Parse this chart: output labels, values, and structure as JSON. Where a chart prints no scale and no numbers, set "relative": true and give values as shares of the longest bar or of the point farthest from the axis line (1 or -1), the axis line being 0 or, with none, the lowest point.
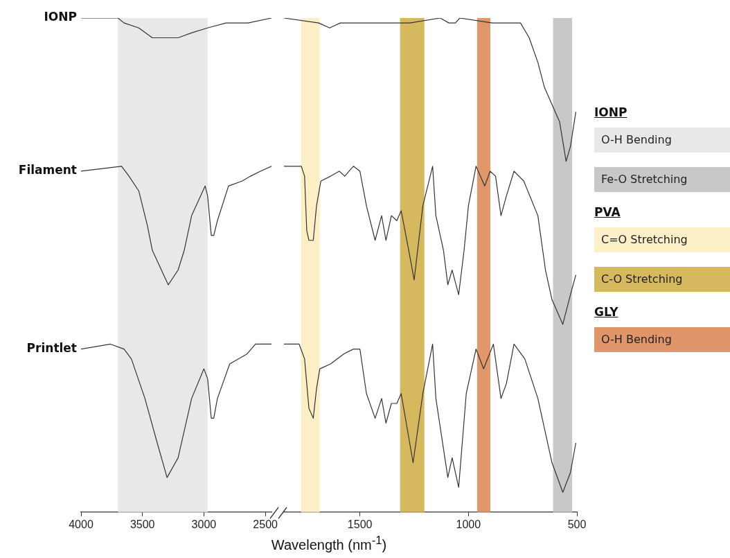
{
  "chart_data": [
    {
      "type": "line",
      "relative": true,
      "xlim": [
        4000,
        2450
      ],
      "xticks": [
        4000,
        3500,
        3000,
        2500
      ],
      "bands": [
        {
          "axis": "x",
          "from": 3700,
          "to": 2970,
          "color": "#e8e8e8"
        }
      ],
      "series": [
        {
          "name": "IONP",
          "color": "#333333",
          "x": [
            4000,
            3700,
            3650,
            3530,
            3420,
            3330,
            3210,
            3100,
            2970,
            2820,
            2640,
            2450
          ],
          "values": [
            1.0,
            1.0,
            0.99,
            0.98,
            0.96,
            0.96,
            0.96,
            0.97,
            0.98,
            0.99,
            0.99,
            1.0
          ]
        },
        {
          "name": "Filament",
          "color": "#333333",
          "x": [
            4000,
            3670,
            3610,
            3530,
            3460,
            3420,
            3290,
            3210,
            3160,
            3100,
            2990,
            2970,
            2940,
            2920,
            2890,
            2800,
            2690,
            2620,
            2540,
            2450
          ],
          "values": [
            0.69,
            0.7,
            0.68,
            0.65,
            0.58,
            0.53,
            0.46,
            0.49,
            0.53,
            0.6,
            0.66,
            0.64,
            0.56,
            0.56,
            0.59,
            0.66,
            0.67,
            0.68,
            0.69,
            0.7
          ]
        },
        {
          "name": "Printlet",
          "color": "#333333",
          "x": [
            4000,
            3760,
            3650,
            3590,
            3480,
            3380,
            3300,
            3210,
            3100,
            3000,
            2970,
            2940,
            2920,
            2890,
            2790,
            2650,
            2580,
            2450
          ],
          "values": [
            0.33,
            0.34,
            0.33,
            0.31,
            0.23,
            0.14,
            0.07,
            0.11,
            0.23,
            0.29,
            0.27,
            0.19,
            0.19,
            0.23,
            0.3,
            0.32,
            0.34,
            0.34
          ]
        }
      ]
    },
    {
      "type": "line",
      "relative": true,
      "xlabel": "Wavelength (nm$^{-1}$)",
      "xlim": [
        1850,
        500
      ],
      "xticks": [
        1500,
        1000,
        500
      ],
      "bands": [
        {
          "axis": "x",
          "from": 1772,
          "to": 1685,
          "color": "#fcefc5"
        },
        {
          "axis": "x",
          "from": 1315,
          "to": 1203,
          "color": "#d6b85e"
        },
        {
          "axis": "x",
          "from": 960,
          "to": 899,
          "color": "#e0976a"
        },
        {
          "axis": "x",
          "from": 610,
          "to": 522,
          "color": "#c8c8c8"
        }
      ],
      "series": [
        {
          "color": "#333333",
          "x": [
            1850,
            1690,
            1640,
            1590,
            1430,
            1270,
            1130,
            1090,
            1060,
            1040,
            890,
            780,
            760,
            720,
            680,
            650,
            620,
            580,
            550,
            530,
            505
          ],
          "values": [
            1.0,
            0.99,
            0.98,
            0.99,
            0.99,
            0.99,
            1.0,
            0.99,
            0.99,
            1.0,
            0.99,
            0.99,
            0.99,
            0.96,
            0.91,
            0.86,
            0.83,
            0.79,
            0.71,
            0.74,
            0.81
          ]
        },
        {
          "color": "#333333",
          "x": [
            1850,
            1770,
            1755,
            1745,
            1735,
            1715,
            1700,
            1680,
            1635,
            1595,
            1570,
            1530,
            1500,
            1470,
            1430,
            1400,
            1380,
            1355,
            1330,
            1310,
            1275,
            1250,
            1210,
            1165,
            1150,
            1115,
            1095,
            1075,
            1045,
            1020,
            1000,
            965,
            925,
            900,
            875,
            850,
            825,
            790,
            745,
            680,
            645,
            615,
            565,
            530,
            505
          ],
          "values": [
            0.7,
            0.7,
            0.68,
            0.57,
            0.55,
            0.55,
            0.62,
            0.67,
            0.68,
            0.69,
            0.68,
            0.7,
            0.69,
            0.62,
            0.55,
            0.6,
            0.55,
            0.6,
            0.59,
            0.61,
            0.53,
            0.47,
            0.62,
            0.7,
            0.6,
            0.53,
            0.46,
            0.49,
            0.44,
            0.53,
            0.62,
            0.7,
            0.66,
            0.69,
            0.68,
            0.6,
            0.64,
            0.69,
            0.67,
            0.6,
            0.49,
            0.43,
            0.38,
            0.44,
            0.48
          ]
        },
        {
          "color": "#333333",
          "x": [
            1850,
            1780,
            1755,
            1735,
            1715,
            1700,
            1685,
            1635,
            1575,
            1530,
            1500,
            1470,
            1430,
            1400,
            1380,
            1355,
            1330,
            1310,
            1255,
            1210,
            1165,
            1150,
            1095,
            1075,
            1045,
            1010,
            965,
            930,
            885,
            850,
            825,
            790,
            740,
            680,
            615,
            565,
            530,
            505
          ],
          "values": [
            0.34,
            0.34,
            0.31,
            0.21,
            0.19,
            0.25,
            0.29,
            0.3,
            0.32,
            0.33,
            0.33,
            0.24,
            0.19,
            0.23,
            0.18,
            0.22,
            0.22,
            0.24,
            0.1,
            0.24,
            0.34,
            0.23,
            0.07,
            0.11,
            0.05,
            0.24,
            0.33,
            0.29,
            0.34,
            0.23,
            0.26,
            0.34,
            0.31,
            0.23,
            0.1,
            0.04,
            0.08,
            0.14
          ]
        }
      ]
    },
    {
      "type": "other",
      "title": "IONP",
      "categories": [
        "O-H Bending",
        "Fe-O Stretching"
      ],
      "colors": [
        "#e8e8e8",
        "#c8c8c8"
      ]
    },
    {
      "type": "other",
      "title": "PVA",
      "categories": [
        "C=O Stretching",
        "C-O Stretching"
      ],
      "colors": [
        "#fdf0c8",
        "#d6b85e"
      ]
    },
    {
      "type": "other",
      "title": "GLY",
      "categories": [
        "O-H Bending"
      ],
      "colors": [
        "#e0956a"
      ]
    }
  ]
}
